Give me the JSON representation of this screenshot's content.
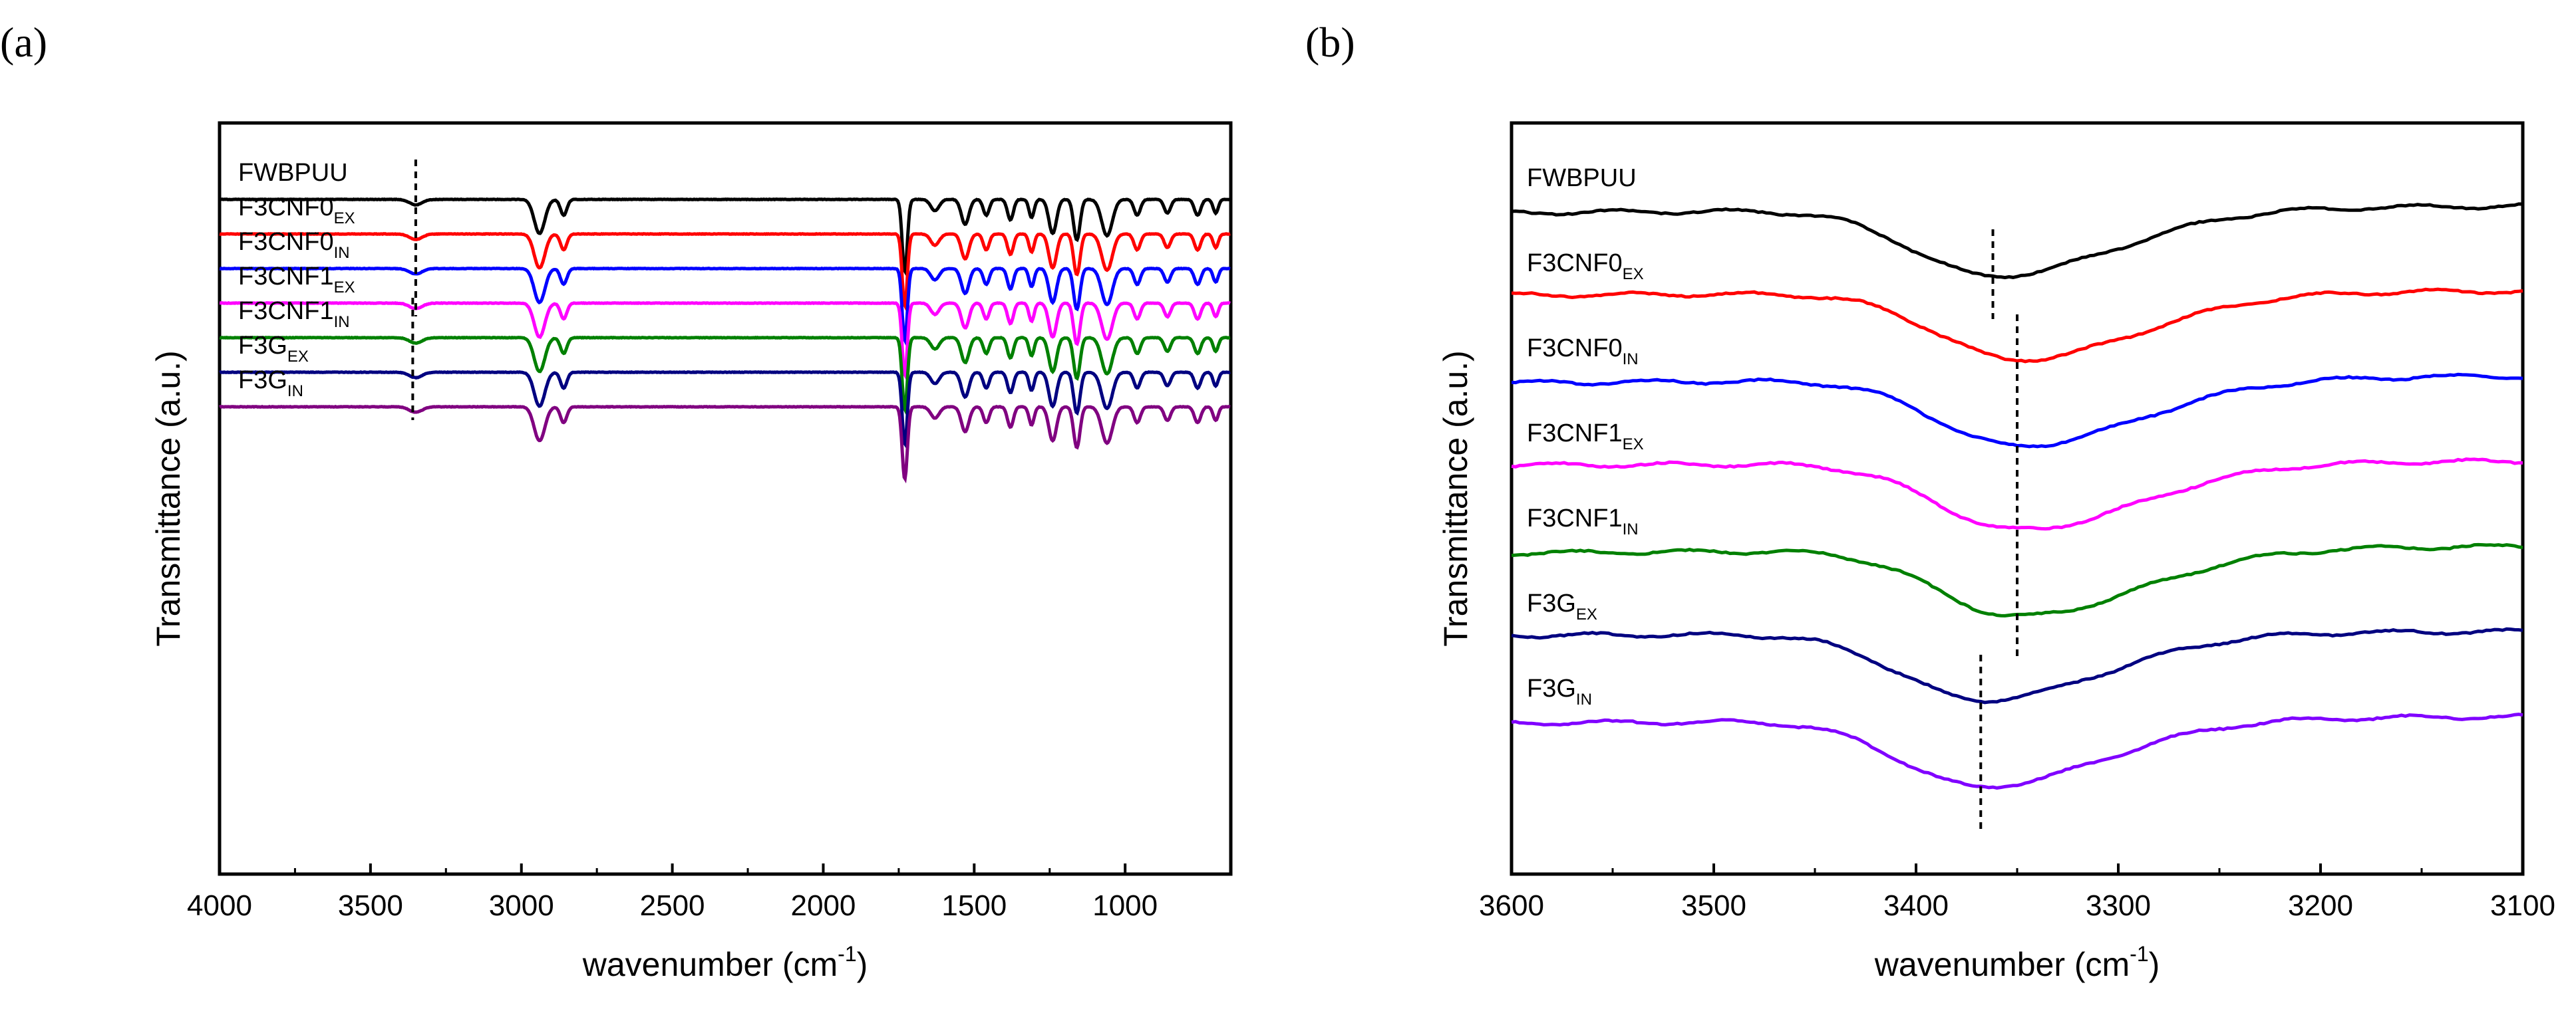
{
  "chart_data": [
    {
      "panel": "(a)",
      "type": "line",
      "xlabel": "wavenumber (cm",
      "xlabel_sup": "-1",
      "xlabel_end": ")",
      "ylabel": "Transmittance (a.u.)",
      "xlim": [
        4000,
        650
      ],
      "x_reversed": true,
      "xticks": [
        4000,
        3500,
        3000,
        2500,
        2000,
        1500,
        1000
      ],
      "y_ticks_shown": false,
      "series_order": [
        "FWBPUU",
        "F3CNF0_EX",
        "F3CNF0_IN",
        "F3CNF1_EX",
        "F3CNF1_IN",
        "F3G_EX",
        "F3G_IN"
      ],
      "series": [
        {
          "name": "FWBPUU",
          "label": "FWBPUU",
          "sub": "",
          "color": "#000000",
          "baseline": 0
        },
        {
          "name": "F3CNF0_EX",
          "label": "F3CNF0",
          "sub": "EX",
          "color": "#ff0000",
          "baseline": 1
        },
        {
          "name": "F3CNF0_IN",
          "label": "F3CNF0",
          "sub": "IN",
          "color": "#0000ff",
          "baseline": 2
        },
        {
          "name": "F3CNF1_EX",
          "label": "F3CNF1",
          "sub": "EX",
          "color": "#ff00ff",
          "baseline": 3
        },
        {
          "name": "F3CNF1_IN",
          "label": "F3CNF1",
          "sub": "IN",
          "color": "#008000",
          "baseline": 4
        },
        {
          "name": "F3G_EX",
          "label": "F3G",
          "sub": "EX",
          "color": "#000080",
          "baseline": 5
        },
        {
          "name": "F3G_IN",
          "label": "F3G",
          "sub": "IN",
          "color": "#800080",
          "baseline": 6
        }
      ],
      "bands": [
        {
          "center": 3350,
          "width": 30,
          "depth": 0.12
        },
        {
          "center": 2940,
          "width": 25,
          "depth": 0.75
        },
        {
          "center": 2860,
          "width": 15,
          "depth": 0.35
        },
        {
          "center": 1730,
          "width": 12,
          "depth": 1.6
        },
        {
          "center": 1630,
          "width": 20,
          "depth": 0.25
        },
        {
          "center": 1530,
          "width": 18,
          "depth": 0.55
        },
        {
          "center": 1460,
          "width": 14,
          "depth": 0.35
        },
        {
          "center": 1380,
          "width": 14,
          "depth": 0.45
        },
        {
          "center": 1310,
          "width": 12,
          "depth": 0.4
        },
        {
          "center": 1240,
          "width": 18,
          "depth": 0.75
        },
        {
          "center": 1160,
          "width": 15,
          "depth": 0.9
        },
        {
          "center": 1060,
          "width": 25,
          "depth": 0.8
        },
        {
          "center": 960,
          "width": 15,
          "depth": 0.35
        },
        {
          "center": 860,
          "width": 15,
          "depth": 0.3
        },
        {
          "center": 760,
          "width": 15,
          "depth": 0.35
        },
        {
          "center": 700,
          "width": 12,
          "depth": 0.3
        }
      ],
      "dashed_lines": [
        {
          "x": 3350,
          "from_series": 0,
          "to_series": 3
        },
        {
          "x": 3360,
          "from_series": 4,
          "to_series": 6
        }
      ]
    },
    {
      "panel": "(b)",
      "type": "line",
      "xlabel": "wavenumber (cm",
      "xlabel_sup": "-1",
      "xlabel_end": ")",
      "ylabel": "Transmittance (a.u.)",
      "xlim": [
        3600,
        3100
      ],
      "x_reversed": true,
      "xticks": [
        3600,
        3500,
        3400,
        3300,
        3200,
        3100
      ],
      "y_ticks_shown": false,
      "series": [
        {
          "name": "FWBPUU",
          "label": "FWBPUU",
          "sub": "",
          "color": "#000000",
          "baseline": 0,
          "min_at": 3362
        },
        {
          "name": "F3CNF0_EX",
          "label": "F3CNF0",
          "sub": "EX",
          "color": "#ff0000",
          "baseline": 1,
          "min_at": 3350
        },
        {
          "name": "F3CNF0_IN",
          "label": "F3CNF0",
          "sub": "IN",
          "color": "#0000ff",
          "baseline": 2,
          "min_at": 3350
        },
        {
          "name": "F3CNF1_EX",
          "label": "F3CNF1",
          "sub": "EX",
          "color": "#ff00ff",
          "baseline": 3,
          "min_at": 3350
        },
        {
          "name": "F3CNF1_IN",
          "label": "F3CNF1",
          "sub": "IN",
          "color": "#008000",
          "baseline": 4,
          "min_at": 3350
        },
        {
          "name": "F3G_EX",
          "label": "F3G",
          "sub": "EX",
          "color": "#000080",
          "baseline": 5,
          "min_at": 3368
        },
        {
          "name": "F3G_IN",
          "label": "F3G",
          "sub": "IN",
          "color": "#8000ff",
          "baseline": 6,
          "min_at": 3368
        }
      ],
      "dashed_lines": [
        {
          "x": 3362,
          "from_series": 0,
          "to_series": 0
        },
        {
          "x": 3350,
          "from_series": 1,
          "to_series": 4
        },
        {
          "x": 3368,
          "from_series": 5,
          "to_series": 6
        }
      ]
    }
  ]
}
